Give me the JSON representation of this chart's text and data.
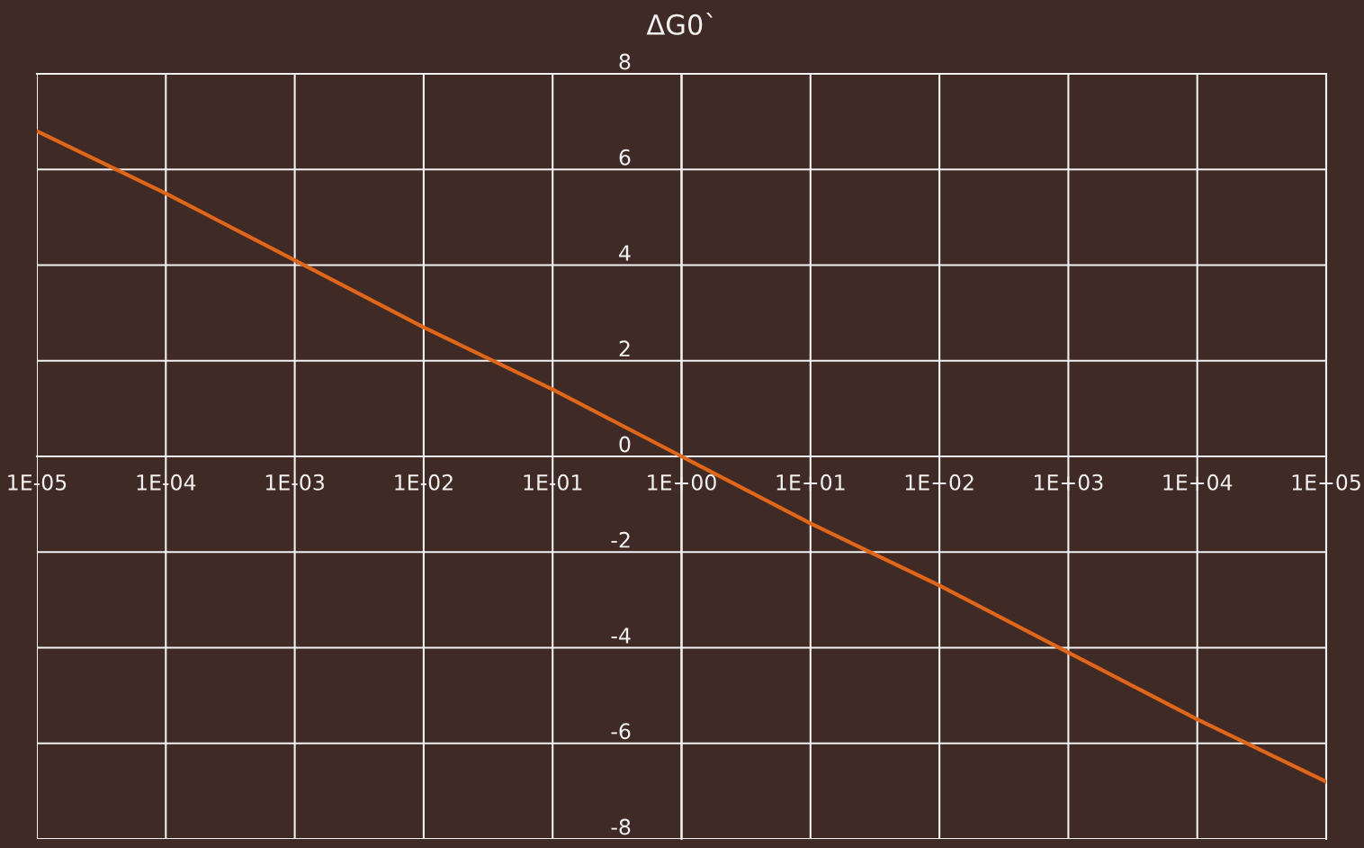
{
  "chart_data": {
    "type": "line",
    "title": "ΔG0`",
    "x": [
      1e-05,
      0.0001,
      0.001,
      0.01,
      0.1,
      1,
      10,
      100,
      1000,
      10000,
      100000
    ],
    "series": [
      {
        "color": "#e0661a",
        "values": [
          6.8,
          5.5,
          4.1,
          2.7,
          1.4,
          0,
          -1.4,
          -2.7,
          -4.1,
          -5.5,
          -6.8
        ]
      }
    ],
    "log": "x",
    "xlim": [
      1e-05,
      100000
    ],
    "xticks": [
      {
        "value": 1e-05,
        "label": "1E-05"
      },
      {
        "value": 0.0001,
        "label": "1E-04"
      },
      {
        "value": 0.001,
        "label": "1E-03"
      },
      {
        "value": 0.01,
        "label": "1E-02"
      },
      {
        "value": 0.1,
        "label": "1E-01"
      },
      {
        "value": 1,
        "label": "1E+00"
      },
      {
        "value": 10,
        "label": "1E+01"
      },
      {
        "value": 100,
        "label": "1E+02"
      },
      {
        "value": 1000,
        "label": "1E+03"
      },
      {
        "value": 10000,
        "label": "1E+04"
      },
      {
        "value": 100000,
        "label": "1E+05"
      }
    ],
    "ylim": [
      -8,
      8
    ],
    "yticks": [
      -8,
      -6,
      -4,
      -2,
      0,
      2,
      4,
      6,
      8
    ],
    "grid": true,
    "marker": "none",
    "line_style": "solid"
  }
}
